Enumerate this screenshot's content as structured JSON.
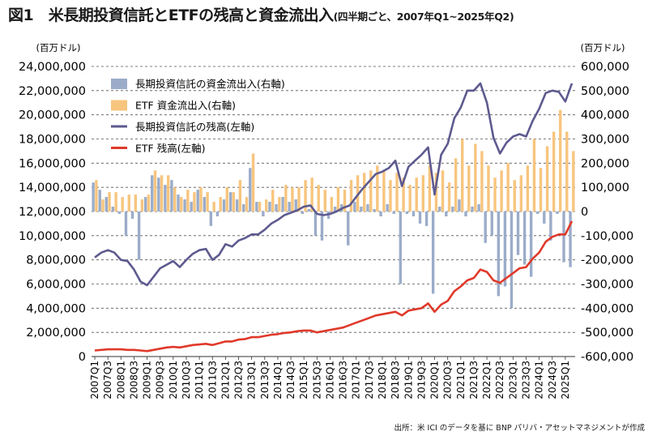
{
  "title": "図1　米長期投資信託とETFの残高と資金流出入",
  "subtitle": "(四半期ごと、2007年Q1~2025年Q2)",
  "source": "出所：米 ICI のデータを基に BNP パリバ・アセットマネジメントが作成",
  "chart_data": {
    "type": "bar+line",
    "left_axis": {
      "unit_label": "(百万ドル)",
      "min": 0,
      "max": 24000000,
      "step": 2000000
    },
    "right_axis": {
      "unit_label": "(百万ドル)",
      "min": -600000,
      "max": 600000,
      "step": 100000
    },
    "grid": "dashed horizontal",
    "legend_position": "top-left",
    "x": [
      "2007Q1",
      "2007Q2",
      "2007Q3",
      "2007Q4",
      "2008Q1",
      "2008Q2",
      "2008Q3",
      "2008Q4",
      "2009Q1",
      "2009Q2",
      "2009Q3",
      "2009Q4",
      "2010Q1",
      "2010Q2",
      "2010Q3",
      "2010Q4",
      "2011Q1",
      "2011Q2",
      "2011Q3",
      "2011Q4",
      "2012Q1",
      "2012Q2",
      "2012Q3",
      "2012Q4",
      "2013Q1",
      "2013Q2",
      "2013Q3",
      "2013Q4",
      "2014Q1",
      "2014Q2",
      "2014Q3",
      "2014Q4",
      "2015Q1",
      "2015Q2",
      "2015Q3",
      "2015Q4",
      "2016Q1",
      "2016Q2",
      "2016Q3",
      "2016Q4",
      "2017Q1",
      "2017Q2",
      "2017Q3",
      "2017Q4",
      "2018Q1",
      "2018Q2",
      "2018Q3",
      "2018Q4",
      "2019Q1",
      "2019Q2",
      "2019Q3",
      "2019Q4",
      "2020Q1",
      "2020Q2",
      "2020Q3",
      "2020Q4",
      "2021Q1",
      "2021Q2",
      "2021Q3",
      "2021Q4",
      "2022Q1",
      "2022Q2",
      "2022Q3",
      "2022Q4",
      "2023Q1",
      "2023Q2",
      "2023Q3",
      "2023Q4",
      "2024Q1",
      "2024Q2",
      "2024Q3",
      "2024Q4",
      "2025Q1",
      "2025Q2"
    ],
    "x_tick_labels": [
      "2007Q1",
      "2007Q3",
      "2008Q1",
      "2008Q3",
      "2009Q1",
      "2009Q3",
      "2010Q1",
      "2010Q3",
      "2011Q1",
      "2011Q3",
      "2012Q1",
      "2012Q3",
      "2013Q1",
      "2013Q3",
      "2014Q1",
      "2014Q3",
      "2015Q1",
      "2015Q3",
      "2016Q1",
      "2016Q3",
      "2017Q1",
      "2017Q3",
      "2018Q1",
      "2018Q3",
      "2019Q1",
      "2019Q3",
      "2020Q1",
      "2020Q3",
      "2021Q1",
      "2021Q3",
      "2022Q1",
      "2022Q3",
      "2023Q1",
      "2023Q3",
      "2024Q1",
      "2024Q3",
      "2025Q1"
    ],
    "series": [
      {
        "name": "長期投資信託の資金流出入(右軸)",
        "kind": "bar",
        "axis": "right",
        "color": "#9bacc9",
        "values": [
          120000,
          90000,
          60000,
          20000,
          -10000,
          -100000,
          -30000,
          -200000,
          60000,
          150000,
          140000,
          110000,
          130000,
          70000,
          50000,
          40000,
          90000,
          60000,
          -60000,
          -20000,
          50000,
          80000,
          50000,
          30000,
          180000,
          40000,
          -20000,
          40000,
          30000,
          60000,
          40000,
          50000,
          -10000,
          10000,
          -100000,
          -120000,
          -30000,
          20000,
          30000,
          -140000,
          40000,
          20000,
          30000,
          10000,
          -20000,
          30000,
          -10000,
          -300000,
          -10000,
          -20000,
          -50000,
          -60000,
          -340000,
          20000,
          -20000,
          20000,
          50000,
          -20000,
          20000,
          30000,
          -130000,
          -100000,
          -350000,
          -310000,
          -400000,
          -180000,
          -220000,
          -270000,
          -10000,
          -50000,
          -120000,
          -10000,
          -210000,
          -230000
        ]
      },
      {
        "name": "ETF 資金流出入(右軸)",
        "kind": "bar",
        "axis": "right",
        "color": "#f7c57e",
        "values": [
          130000,
          50000,
          80000,
          80000,
          60000,
          70000,
          70000,
          50000,
          70000,
          170000,
          150000,
          150000,
          100000,
          60000,
          90000,
          80000,
          100000,
          80000,
          40000,
          60000,
          100000,
          80000,
          130000,
          60000,
          240000,
          40000,
          50000,
          90000,
          60000,
          110000,
          100000,
          100000,
          130000,
          140000,
          110000,
          90000,
          60000,
          100000,
          90000,
          130000,
          150000,
          160000,
          170000,
          190000,
          170000,
          130000,
          160000,
          140000,
          110000,
          140000,
          150000,
          190000,
          160000,
          170000,
          120000,
          220000,
          300000,
          190000,
          280000,
          250000,
          190000,
          140000,
          170000,
          200000,
          130000,
          150000,
          190000,
          300000,
          180000,
          270000,
          330000,
          420000,
          330000,
          250000
        ]
      },
      {
        "name": "長期投資信託の残高(左軸)",
        "kind": "line",
        "axis": "left",
        "color": "#5d5a8f",
        "values": [
          8200000,
          8600000,
          8800000,
          8600000,
          8000000,
          7900000,
          7200000,
          6200000,
          5900000,
          6600000,
          7300000,
          7600000,
          7900000,
          7400000,
          8000000,
          8500000,
          8800000,
          8900000,
          8000000,
          8400000,
          9300000,
          9100000,
          9600000,
          9800000,
          10100000,
          10100000,
          10500000,
          11000000,
          11300000,
          11700000,
          11900000,
          12100000,
          12400000,
          12500000,
          11800000,
          11700000,
          11800000,
          12000000,
          12300000,
          12500000,
          13200000,
          13900000,
          14500000,
          15100000,
          15300000,
          15600000,
          16200000,
          14100000,
          15700000,
          16200000,
          16700000,
          17300000,
          13400000,
          16700000,
          17600000,
          19700000,
          20600000,
          22000000,
          22000000,
          22600000,
          21000000,
          18100000,
          16800000,
          17700000,
          18200000,
          18400000,
          18200000,
          19500000,
          20500000,
          21800000,
          22000000,
          21900000,
          21100000,
          22600000
        ]
      },
      {
        "name": "ETF 残高(左軸)",
        "kind": "line",
        "axis": "left",
        "color": "#e0392a",
        "values": [
          500000,
          550000,
          600000,
          600000,
          600000,
          550000,
          550000,
          500000,
          450000,
          550000,
          650000,
          750000,
          800000,
          750000,
          850000,
          950000,
          1000000,
          1050000,
          950000,
          1100000,
          1250000,
          1250000,
          1400000,
          1450000,
          1600000,
          1600000,
          1700000,
          1800000,
          1850000,
          1950000,
          2000000,
          2100000,
          2150000,
          2150000,
          2000000,
          2100000,
          2200000,
          2300000,
          2400000,
          2600000,
          2800000,
          3000000,
          3200000,
          3400000,
          3500000,
          3600000,
          3700000,
          3400000,
          3800000,
          3900000,
          4000000,
          4400000,
          3700000,
          4300000,
          4600000,
          5400000,
          5800000,
          6300000,
          6500000,
          7200000,
          7000000,
          6300000,
          6100000,
          6500000,
          6900000,
          7300000,
          7400000,
          8100000,
          8600000,
          9500000,
          9900000,
          10100000,
          10100000,
          11200000
        ]
      }
    ]
  }
}
